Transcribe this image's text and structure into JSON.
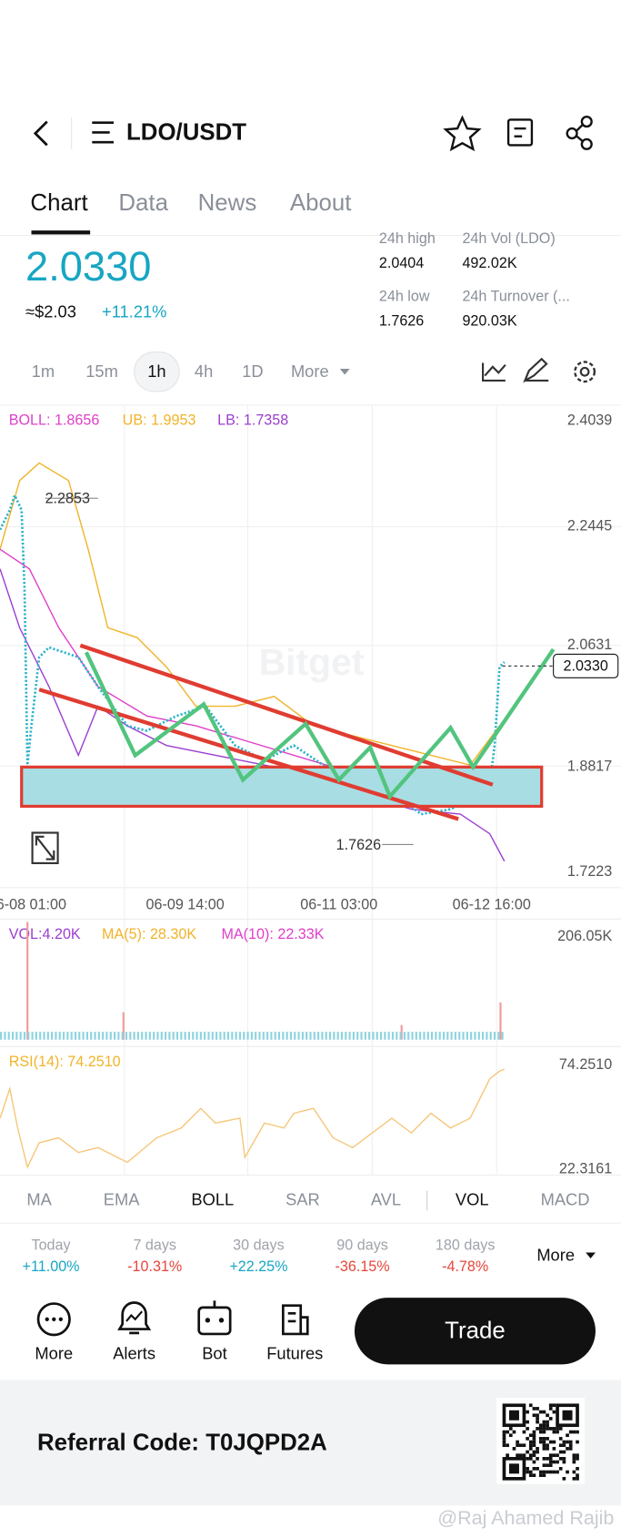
{
  "header": {
    "pair": "LDO/USDT"
  },
  "tabs": [
    "Chart",
    "Data",
    "News",
    "About"
  ],
  "price": {
    "last": "2.0330",
    "usd": "≈$2.03",
    "change": "+11.21%"
  },
  "stats": [
    {
      "label": "24h high",
      "value": "2.0404"
    },
    {
      "label": "24h Vol (LDO)",
      "value": "492.02K"
    },
    {
      "label": "24h low",
      "value": "1.7626"
    },
    {
      "label": "24h Turnover (...",
      "value": "920.03K"
    }
  ],
  "intervals": [
    "1m",
    "15m",
    "1h",
    "4h",
    "1D",
    "More"
  ],
  "chart": {
    "boll": "BOLL: 1.8656",
    "ub": "UB: 1.9953",
    "lb": "LB: 1.7358",
    "price_axis": [
      "2.4039",
      "2.2445",
      "2.0631",
      "1.8817",
      "1.7223"
    ],
    "current": "2.0330",
    "high_marker": "2.2853",
    "low_marker": "1.7626",
    "time_axis": [
      "6-08 01:00",
      "06-09 14:00",
      "06-11 03:00",
      "06-12 16:00"
    ],
    "watermark": "Bitget"
  },
  "volume": {
    "vol": "VOL:4.20K",
    "ma5": "MA(5): 28.30K",
    "ma10": "MA(10): 22.33K",
    "max": "206.05K"
  },
  "rsi": {
    "label": "RSI(14): 74.2510",
    "max": "74.2510",
    "min": "22.3161"
  },
  "indicators": [
    "MA",
    "EMA",
    "BOLL",
    "SAR",
    "AVL",
    "VOL",
    "MACD"
  ],
  "performance": [
    {
      "period": "Today",
      "change": "+11.00%"
    },
    {
      "period": "7 days",
      "change": "-10.31%"
    },
    {
      "period": "30 days",
      "change": "+22.25%"
    },
    {
      "period": "90 days",
      "change": "-36.15%"
    },
    {
      "period": "180 days",
      "change": "-4.78%"
    }
  ],
  "performance_more": "More",
  "actions": [
    "More",
    "Alerts",
    "Bot",
    "Futures"
  ],
  "trade": "Trade",
  "referral": "Referral Code: T0JQPD2A",
  "credit": "@Raj Ahamed Rajib"
}
